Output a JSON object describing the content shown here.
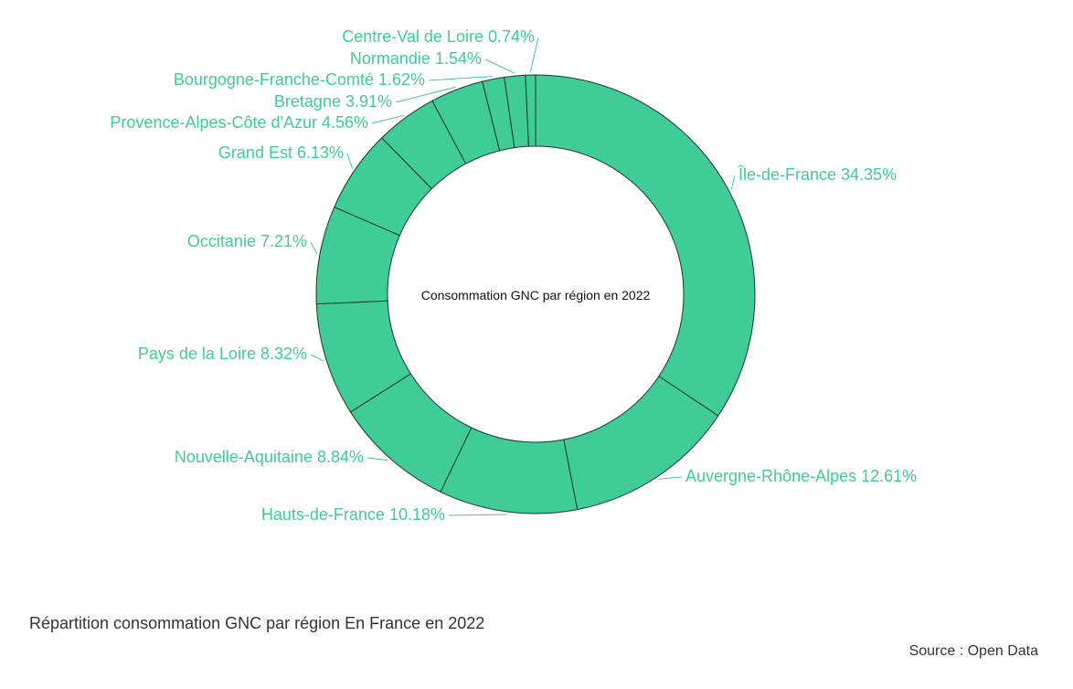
{
  "chart_data": {
    "type": "pie",
    "variant": "donut",
    "center_label": "Consommation GNC par région en 2022",
    "slices": [
      {
        "label": "Île-de-France",
        "value": 34.35,
        "display": "34.35%"
      },
      {
        "label": "Auvergne-Rhône-Alpes",
        "value": 12.61,
        "display": "12.61%"
      },
      {
        "label": "Hauts-de-France",
        "value": 10.18,
        "display": "10.18%"
      },
      {
        "label": "Nouvelle-Aquitaine",
        "value": 8.84,
        "display": "8.84%"
      },
      {
        "label": "Pays de la Loire",
        "value": 8.32,
        "display": "8.32%"
      },
      {
        "label": "Occitanie",
        "value": 7.21,
        "display": "7.21%"
      },
      {
        "label": "Grand Est",
        "value": 6.13,
        "display": "6.13%"
      },
      {
        "label": "Provence-Alpes-Côte d'Azur",
        "value": 4.56,
        "display": "4.56%"
      },
      {
        "label": "Bretagne",
        "value": 3.91,
        "display": "3.91%"
      },
      {
        "label": "Bourgogne-Franche-Comté",
        "value": 1.62,
        "display": "1.62%"
      },
      {
        "label": "Normandie",
        "value": 1.54,
        "display": "1.54%"
      },
      {
        "label": "Centre-Val de Loire",
        "value": 0.74,
        "display": "0.74%"
      }
    ],
    "colors": {
      "slice": "#40cc96",
      "stroke": "#1c3a2c",
      "label": "#40cc96",
      "center_text": "#111111"
    }
  },
  "caption": "Répartition consommation GNC par région En France en 2022",
  "source": "Source : Open Data"
}
